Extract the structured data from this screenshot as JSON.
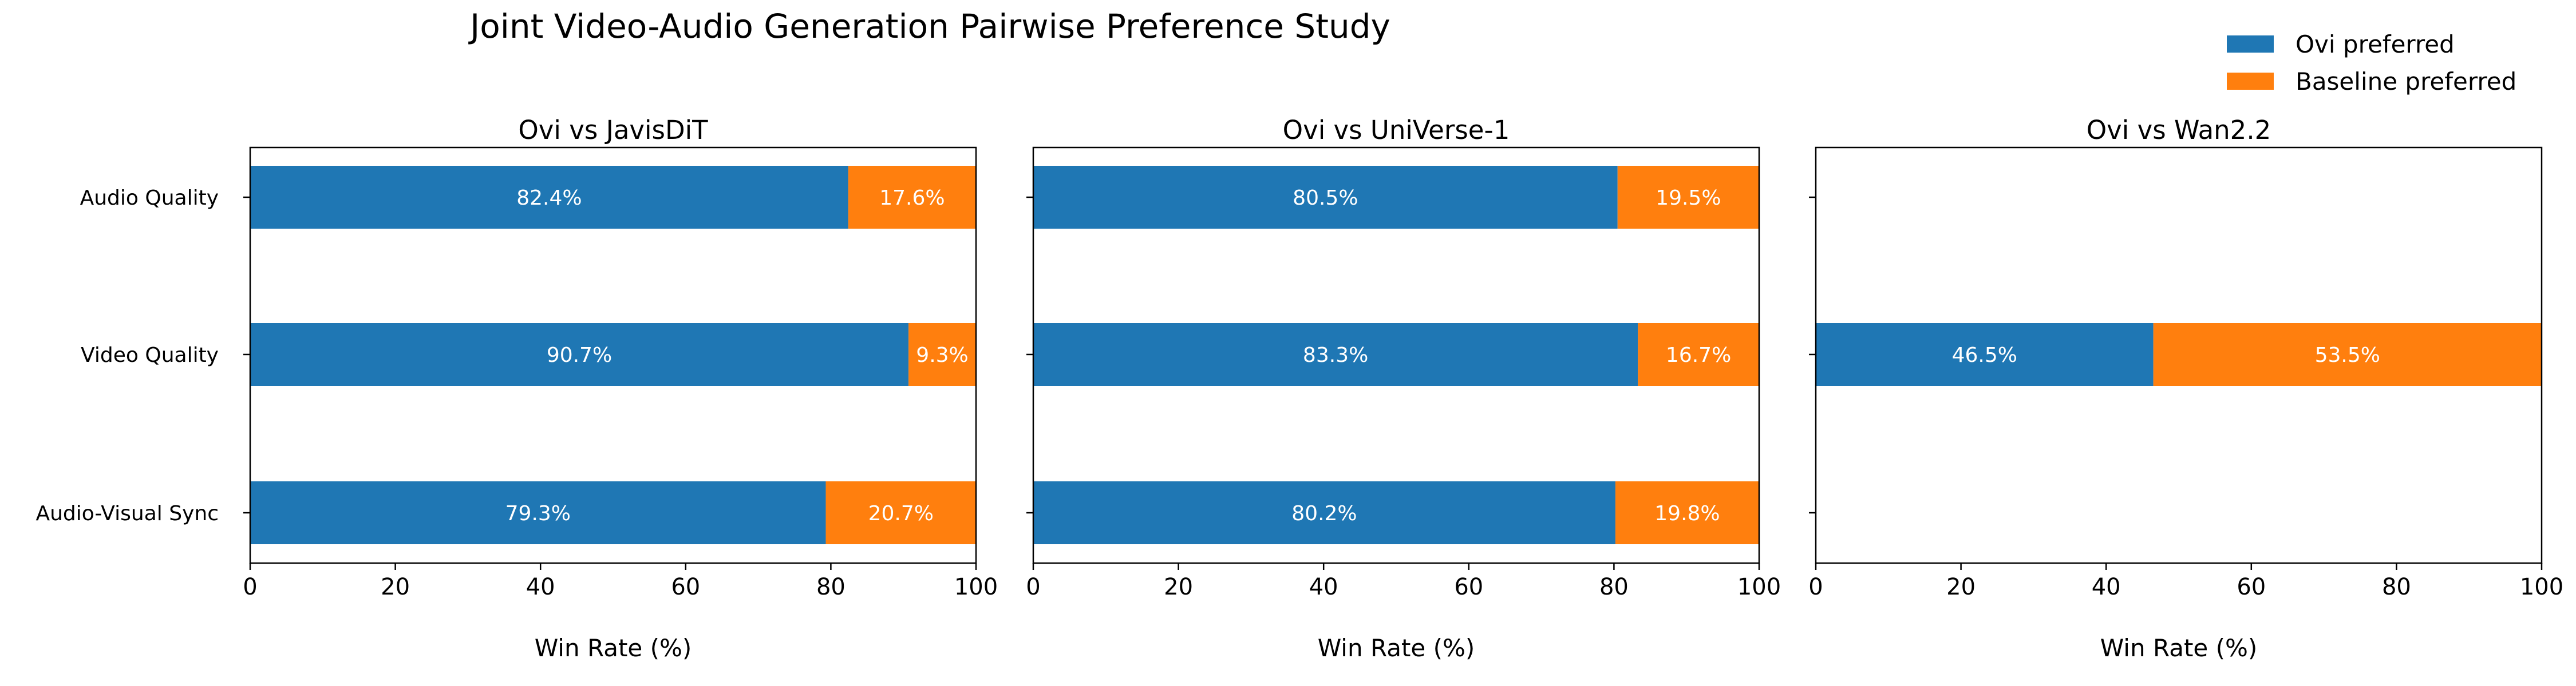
{
  "chart_data": {
    "type": "bar",
    "orientation": "horizontal",
    "stacked": true,
    "title": "Joint Video-Audio Generation Pairwise Preference Study",
    "categories": [
      "Audio Quality",
      "Video Quality",
      "Audio-Visual Sync"
    ],
    "series_names": [
      "Ovi preferred",
      "Baseline preferred"
    ],
    "colors": {
      "ovi": "#1f77b4",
      "baseline": "#ff7f0e"
    },
    "xlabel": "Win Rate (%)",
    "xlim": [
      0,
      100
    ],
    "xticks": [
      "0",
      "20",
      "40",
      "60",
      "80",
      "100"
    ],
    "legend_position": "top-right",
    "grid": false,
    "panels": [
      {
        "title": "Ovi vs JavisDiT",
        "series": [
          {
            "name": "Ovi preferred",
            "values": [
              82.4,
              90.7,
              79.3
            ],
            "labels": [
              "82.4%",
              "90.7%",
              "79.3%"
            ]
          },
          {
            "name": "Baseline preferred",
            "values": [
              17.6,
              9.3,
              20.7
            ],
            "labels": [
              "17.6%",
              "9.3%",
              "20.7%"
            ]
          }
        ]
      },
      {
        "title": "Ovi vs UniVerse-1",
        "series": [
          {
            "name": "Ovi preferred",
            "values": [
              80.5,
              83.3,
              80.2
            ],
            "labels": [
              "80.5%",
              "83.3%",
              "80.2%"
            ]
          },
          {
            "name": "Baseline preferred",
            "values": [
              19.5,
              16.7,
              19.8
            ],
            "labels": [
              "19.5%",
              "16.7%",
              "19.8%"
            ]
          }
        ]
      },
      {
        "title": "Ovi vs Wan2.2",
        "series": [
          {
            "name": "Ovi preferred",
            "values": [
              null,
              46.5,
              null
            ],
            "labels": [
              "",
              "46.5%",
              ""
            ]
          },
          {
            "name": "Baseline preferred",
            "values": [
              null,
              53.5,
              null
            ],
            "labels": [
              "",
              "53.5%",
              ""
            ]
          }
        ]
      }
    ]
  }
}
